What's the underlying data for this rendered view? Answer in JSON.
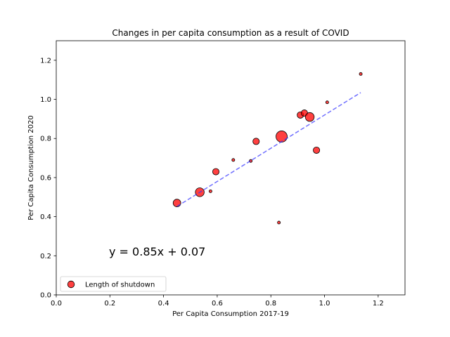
{
  "chart_data": {
    "type": "scatter",
    "title": "Changes in per capita consumption as a result of COVID",
    "xlabel": "Per Capita Consumption 2017-19",
    "ylabel": "Per Capita Consumption 2020",
    "xlim": [
      0.0,
      1.3
    ],
    "ylim": [
      0.0,
      1.3
    ],
    "x_ticks": [
      "0.0",
      "0.2",
      "0.4",
      "0.6",
      "0.8",
      "1.0",
      "1.2"
    ],
    "y_ticks": [
      "0.0",
      "0.2",
      "0.4",
      "0.6",
      "0.8",
      "1.0",
      "1.2"
    ],
    "grid": false,
    "legend": {
      "placement": "lower-left",
      "entries": [
        "Length of shutdown"
      ]
    },
    "series": [
      {
        "name": "Length of shutdown",
        "points": [
          {
            "x": 0.45,
            "y": 0.47,
            "size": 5
          },
          {
            "x": 0.535,
            "y": 0.525,
            "size": 6
          },
          {
            "x": 0.575,
            "y": 0.53,
            "size": 1
          },
          {
            "x": 0.595,
            "y": 0.63,
            "size": 4
          },
          {
            "x": 0.66,
            "y": 0.69,
            "size": 1
          },
          {
            "x": 0.725,
            "y": 0.685,
            "size": 1
          },
          {
            "x": 0.745,
            "y": 0.785,
            "size": 4
          },
          {
            "x": 0.83,
            "y": 0.37,
            "size": 1
          },
          {
            "x": 0.84,
            "y": 0.81,
            "size": 8
          },
          {
            "x": 0.91,
            "y": 0.92,
            "size": 4
          },
          {
            "x": 0.925,
            "y": 0.93,
            "size": 4
          },
          {
            "x": 0.945,
            "y": 0.91,
            "size": 6
          },
          {
            "x": 0.97,
            "y": 0.74,
            "size": 4
          },
          {
            "x": 1.01,
            "y": 0.985,
            "size": 1
          },
          {
            "x": 1.135,
            "y": 1.13,
            "size": 1
          }
        ]
      }
    ],
    "trendline": {
      "slope": 0.85,
      "intercept": 0.07,
      "x_range": [
        0.45,
        1.135
      ]
    },
    "annotation": "y = 0.85x + 0.07",
    "colors": {
      "marker_fill": "#ff0000",
      "marker_edge": "#000000",
      "trendline": "#3333ff",
      "annotation": "#0000ff"
    }
  }
}
